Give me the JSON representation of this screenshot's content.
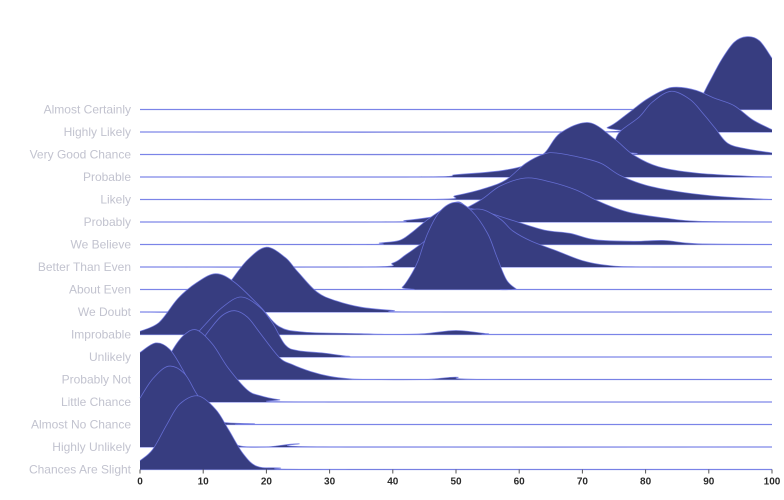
{
  "chart_data": {
    "type": "ridgeline",
    "title": "",
    "xlabel": "",
    "ylabel": "",
    "xlim": [
      0,
      100
    ],
    "x_ticks": [
      "0",
      "10",
      "20",
      "30",
      "40",
      "50",
      "60",
      "70",
      "80",
      "90",
      "100"
    ],
    "grid": false,
    "colors": {
      "fill": "#373d80",
      "outline": "#7079e6",
      "baseline": "#8d95ea",
      "label": "#c2c3cf"
    },
    "density_scale_note": "",
    "series": [
      {
        "name": "Almost Certainly",
        "points": [
          [
            0,
            0
          ],
          [
            80,
            0
          ],
          [
            86,
            0.01
          ],
          [
            88,
            0.05
          ],
          [
            90,
            0.33
          ],
          [
            92,
            0.62
          ],
          [
            94,
            0.84
          ],
          [
            96,
            0.91
          ],
          [
            98,
            0.86
          ],
          [
            100,
            0.64
          ]
        ]
      },
      {
        "name": "Highly Likely",
        "points": [
          [
            0,
            0
          ],
          [
            70,
            0
          ],
          [
            74,
            0.06
          ],
          [
            77,
            0.22
          ],
          [
            80,
            0.4
          ],
          [
            83,
            0.53
          ],
          [
            85,
            0.56
          ],
          [
            88,
            0.52
          ],
          [
            91,
            0.42
          ],
          [
            94,
            0.33
          ],
          [
            97,
            0.15
          ],
          [
            100,
            0.03
          ]
        ]
      },
      {
        "name": "Very Good Chance",
        "points": [
          [
            0,
            0
          ],
          [
            73,
            0
          ],
          [
            74,
            0.05
          ],
          [
            75,
            0.15
          ],
          [
            76,
            0.29
          ],
          [
            79,
            0.47
          ],
          [
            81,
            0.65
          ],
          [
            84,
            0.79
          ],
          [
            87,
            0.69
          ],
          [
            89,
            0.52
          ],
          [
            91,
            0.33
          ],
          [
            93,
            0.14
          ],
          [
            96,
            0.07
          ],
          [
            100,
            0.02
          ]
        ]
      },
      {
        "name": "Probable",
        "points": [
          [
            0,
            0
          ],
          [
            44,
            0
          ],
          [
            50,
            0.03
          ],
          [
            55,
            0.06
          ],
          [
            58,
            0.09
          ],
          [
            61,
            0.15
          ],
          [
            64,
            0.3
          ],
          [
            66.5,
            0.55
          ],
          [
            71,
            0.68
          ],
          [
            75,
            0.48
          ],
          [
            78,
            0.28
          ],
          [
            82,
            0.13
          ],
          [
            88,
            0.05
          ],
          [
            96,
            0.01
          ],
          [
            100,
            0
          ]
        ]
      },
      {
        "name": "Likely",
        "points": [
          [
            0,
            0
          ],
          [
            45,
            0
          ],
          [
            50,
            0.05
          ],
          [
            55,
            0.15
          ],
          [
            58,
            0.25
          ],
          [
            61,
            0.45
          ],
          [
            64,
            0.57
          ],
          [
            66,
            0.58
          ],
          [
            70,
            0.52
          ],
          [
            73,
            0.45
          ],
          [
            76,
            0.3
          ],
          [
            80,
            0.18
          ],
          [
            85,
            0.1
          ],
          [
            90,
            0.05
          ],
          [
            95,
            0.02
          ],
          [
            100,
            0
          ]
        ]
      },
      {
        "name": "Probably",
        "points": [
          [
            0,
            0
          ],
          [
            38,
            0
          ],
          [
            42,
            0.02
          ],
          [
            46,
            0.06
          ],
          [
            50,
            0.12
          ],
          [
            54,
            0.28
          ],
          [
            57,
            0.45
          ],
          [
            61,
            0.55
          ],
          [
            65,
            0.5
          ],
          [
            69,
            0.4
          ],
          [
            72,
            0.28
          ],
          [
            75,
            0.18
          ],
          [
            78,
            0.11
          ],
          [
            83,
            0.05
          ],
          [
            88,
            0.01
          ],
          [
            100,
            0
          ]
        ]
      },
      {
        "name": "We Believe",
        "points": [
          [
            0,
            0
          ],
          [
            35,
            0
          ],
          [
            38,
            0.02
          ],
          [
            41,
            0.05
          ],
          [
            43,
            0.15
          ],
          [
            46,
            0.34
          ],
          [
            50,
            0.53
          ],
          [
            52,
            0.46
          ],
          [
            55,
            0.4
          ],
          [
            59,
            0.3
          ],
          [
            64,
            0.18
          ],
          [
            68,
            0.14
          ],
          [
            72,
            0.06
          ],
          [
            78,
            0.04
          ],
          [
            83,
            0.05
          ],
          [
            88,
            0.01
          ],
          [
            100,
            0
          ]
        ]
      },
      {
        "name": "Better Than Even",
        "points": [
          [
            0,
            0
          ],
          [
            36,
            0
          ],
          [
            40,
            0.05
          ],
          [
            42,
            0.15
          ],
          [
            45,
            0.32
          ],
          [
            48,
            0.5
          ],
          [
            51,
            0.68
          ],
          [
            54,
            0.72
          ],
          [
            57,
            0.6
          ],
          [
            59,
            0.45
          ],
          [
            62,
            0.32
          ],
          [
            66,
            0.2
          ],
          [
            70,
            0.08
          ],
          [
            74,
            0.02
          ],
          [
            80,
            0
          ],
          [
            100,
            0
          ]
        ]
      },
      {
        "name": "About Even",
        "points": [
          [
            0,
            0
          ],
          [
            40,
            0
          ],
          [
            41.5,
            0.03
          ],
          [
            43,
            0.2
          ],
          [
            44,
            0.36
          ],
          [
            45.5,
            0.7
          ],
          [
            47.5,
            0.98
          ],
          [
            50,
            1.09
          ],
          [
            52.5,
            0.98
          ],
          [
            55,
            0.7
          ],
          [
            56.5,
            0.4
          ],
          [
            58,
            0.12
          ],
          [
            59.5,
            0.01
          ],
          [
            60,
            0
          ],
          [
            100,
            0
          ]
        ]
      },
      {
        "name": "We Doubt",
        "points": [
          [
            0,
            0
          ],
          [
            8,
            0
          ],
          [
            11,
            0.05
          ],
          [
            14,
            0.35
          ],
          [
            17,
            0.65
          ],
          [
            20,
            0.81
          ],
          [
            23,
            0.68
          ],
          [
            25,
            0.5
          ],
          [
            28,
            0.25
          ],
          [
            31,
            0.14
          ],
          [
            35,
            0.06
          ],
          [
            40,
            0.02
          ],
          [
            45,
            0
          ],
          [
            100,
            0
          ]
        ]
      },
      {
        "name": "Improbable",
        "points": [
          [
            0,
            0.04
          ],
          [
            3,
            0.15
          ],
          [
            6,
            0.45
          ],
          [
            9,
            0.65
          ],
          [
            12,
            0.76
          ],
          [
            15,
            0.65
          ],
          [
            19,
            0.35
          ],
          [
            22,
            0.1
          ],
          [
            26,
            0.03
          ],
          [
            35,
            0.01
          ],
          [
            40,
            0
          ],
          [
            45,
            0.01
          ],
          [
            50,
            0.05
          ],
          [
            55,
            0.01
          ],
          [
            58,
            0
          ],
          [
            100,
            0
          ]
        ]
      },
      {
        "name": "Unlikely",
        "points": [
          [
            0,
            0
          ],
          [
            4,
            0.02
          ],
          [
            7,
            0.12
          ],
          [
            10,
            0.38
          ],
          [
            13,
            0.62
          ],
          [
            16,
            0.75
          ],
          [
            19,
            0.62
          ],
          [
            21,
            0.42
          ],
          [
            23,
            0.15
          ],
          [
            25,
            0.08
          ],
          [
            29,
            0.05
          ],
          [
            33,
            0.01
          ],
          [
            38,
            0
          ],
          [
            100,
            0
          ]
        ]
      },
      {
        "name": "Probably Not",
        "points": [
          [
            0,
            0
          ],
          [
            5,
            0.05
          ],
          [
            8,
            0.3
          ],
          [
            11,
            0.62
          ],
          [
            13,
            0.8
          ],
          [
            15,
            0.86
          ],
          [
            17,
            0.78
          ],
          [
            19,
            0.58
          ],
          [
            22,
            0.28
          ],
          [
            24,
            0.19
          ],
          [
            27,
            0.1
          ],
          [
            30,
            0.04
          ],
          [
            33,
            0.01
          ],
          [
            36,
            0
          ],
          [
            45,
            0
          ],
          [
            50,
            0.03
          ],
          [
            55,
            0
          ],
          [
            100,
            0
          ]
        ]
      },
      {
        "name": "Little Chance",
        "points": [
          [
            0,
            0.05
          ],
          [
            3,
            0.3
          ],
          [
            5,
            0.63
          ],
          [
            7,
            0.84
          ],
          [
            9,
            0.9
          ],
          [
            11.5,
            0.72
          ],
          [
            14,
            0.42
          ],
          [
            17,
            0.15
          ],
          [
            19,
            0.08
          ],
          [
            22,
            0.03
          ],
          [
            27,
            0
          ],
          [
            100,
            0
          ]
        ]
      },
      {
        "name": "Almost No Chance",
        "points": [
          [
            0,
            0.9
          ],
          [
            2.5,
            1.02
          ],
          [
            4.7,
            0.94
          ],
          [
            6.8,
            0.68
          ],
          [
            8.7,
            0.38
          ],
          [
            10.6,
            0.12
          ],
          [
            13,
            0.03
          ],
          [
            18,
            0.01
          ],
          [
            22,
            0
          ],
          [
            100,
            0
          ]
        ]
      },
      {
        "name": "Highly Unlikely",
        "points": [
          [
            0,
            0.61
          ],
          [
            2,
            0.85
          ],
          [
            4.5,
            1.01
          ],
          [
            7,
            0.92
          ],
          [
            9,
            0.66
          ],
          [
            12,
            0.3
          ],
          [
            14,
            0.1
          ],
          [
            16,
            0.01
          ],
          [
            20,
            0
          ],
          [
            25,
            0.04
          ],
          [
            30,
            0
          ],
          [
            100,
            0
          ]
        ]
      },
      {
        "name": "Chances Are Slight",
        "points": [
          [
            0,
            0.11
          ],
          [
            2,
            0.25
          ],
          [
            4.3,
            0.57
          ],
          [
            6.3,
            0.82
          ],
          [
            9.2,
            0.92
          ],
          [
            12,
            0.75
          ],
          [
            14,
            0.5
          ],
          [
            16.3,
            0.2
          ],
          [
            18.5,
            0.04
          ],
          [
            22,
            0.02
          ],
          [
            29,
            0
          ],
          [
            100,
            0
          ]
        ]
      }
    ]
  }
}
